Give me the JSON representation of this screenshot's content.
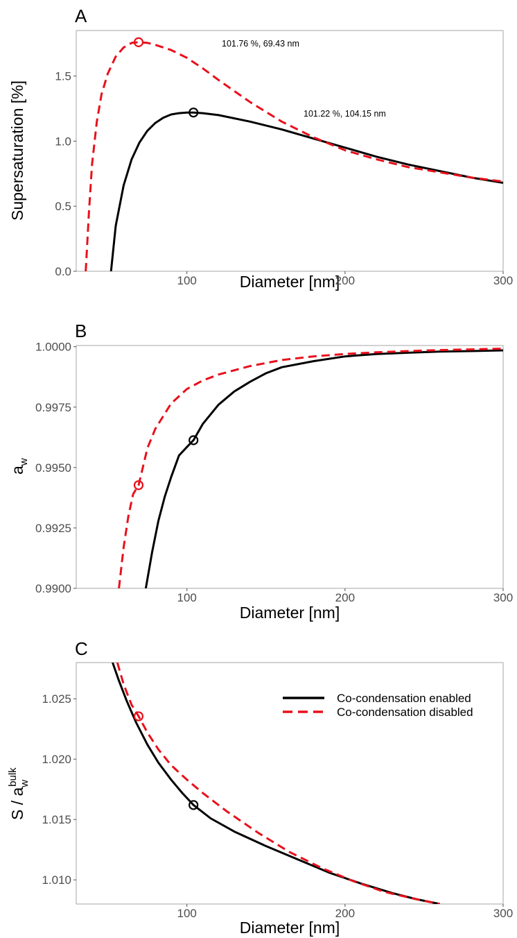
{
  "colors": {
    "enabled": "#000000",
    "disabled": "#e8101b"
  },
  "legend": {
    "items": [
      {
        "label": "Co-condensation enabled",
        "color": "#000000",
        "dash": false
      },
      {
        "label": "Co-condensation disabled",
        "color": "#e8101b",
        "dash": true
      }
    ]
  },
  "chart_data": [
    {
      "panel": "A",
      "type": "line",
      "xlabel": "Diameter [nm]",
      "ylabel": "Supersaturation [%]",
      "xlim": [
        30,
        300
      ],
      "ylim": [
        0,
        1.85
      ],
      "xticks": [
        100,
        200,
        300
      ],
      "yticks": [
        0.0,
        0.5,
        1.0,
        1.5
      ],
      "ytick_labels": [
        "0.0",
        "0.5",
        "1.0",
        "1.5"
      ],
      "series": [
        {
          "key": "enabled",
          "color": "#000000",
          "dash": false,
          "x": [
            52,
            55,
            60,
            65,
            70,
            75,
            80,
            85,
            90,
            95,
            100,
            104.15,
            110,
            120,
            140,
            160,
            180,
            200,
            220,
            240,
            260,
            280,
            300
          ],
          "y": [
            0.0,
            0.35,
            0.66,
            0.86,
            0.99,
            1.08,
            1.14,
            1.18,
            1.205,
            1.215,
            1.22,
            1.22,
            1.215,
            1.2,
            1.15,
            1.09,
            1.02,
            0.95,
            0.88,
            0.82,
            0.77,
            0.72,
            0.68
          ]
        },
        {
          "key": "disabled",
          "color": "#e8101b",
          "dash": true,
          "x": [
            36,
            38,
            40,
            43,
            46,
            50,
            55,
            60,
            65,
            69.43,
            75,
            80,
            90,
            100,
            110,
            120,
            140,
            160,
            180,
            200,
            220,
            240,
            260,
            280,
            300
          ],
          "y": [
            0.0,
            0.45,
            0.82,
            1.15,
            1.36,
            1.52,
            1.65,
            1.72,
            1.755,
            1.76,
            1.755,
            1.74,
            1.7,
            1.64,
            1.56,
            1.47,
            1.3,
            1.15,
            1.03,
            0.93,
            0.86,
            0.8,
            0.76,
            0.72,
            0.69
          ]
        }
      ],
      "markers": [
        {
          "key": "disabled",
          "x": 69.43,
          "y": 1.76,
          "label": "101.76 %, 69.43 nm"
        },
        {
          "key": "enabled",
          "x": 104.15,
          "y": 1.22,
          "label": "101.22 %, 104.15 nm"
        }
      ]
    },
    {
      "panel": "B",
      "type": "line",
      "xlabel": "Diameter [nm]",
      "ylabel": "a",
      "ylabel_sub": "w",
      "xlim": [
        30,
        300
      ],
      "ylim": [
        0.99,
        1.00005
      ],
      "xticks": [
        100,
        200,
        300
      ],
      "yticks": [
        0.99,
        0.9925,
        0.995,
        0.9975,
        1.0
      ],
      "ytick_labels": [
        "0.9900",
        "0.9925",
        "0.9950",
        "0.9975",
        "1.0000"
      ],
      "series": [
        {
          "key": "enabled",
          "color": "#000000",
          "dash": false,
          "x": [
            74,
            78,
            82,
            86,
            90,
            95,
            100,
            104.15,
            110,
            120,
            130,
            140,
            150,
            160,
            180,
            200,
            220,
            240,
            260,
            280,
            300
          ],
          "y": [
            0.99,
            0.9915,
            0.9928,
            0.9938,
            0.9946,
            0.9955,
            0.99585,
            0.99613,
            0.9968,
            0.9976,
            0.99815,
            0.99855,
            0.9989,
            0.99915,
            0.9994,
            0.9996,
            0.9997,
            0.99975,
            0.9998,
            0.99982,
            0.99985
          ]
        },
        {
          "key": "disabled",
          "color": "#e8101b",
          "dash": true,
          "x": [
            57,
            60,
            63,
            66,
            69.43,
            75,
            80,
            90,
            100,
            110,
            120,
            140,
            160,
            180,
            200,
            220,
            240,
            260,
            280,
            300
          ],
          "y": [
            0.99,
            0.9917,
            0.993,
            0.9939,
            0.99427,
            0.9958,
            0.9966,
            0.99765,
            0.99825,
            0.9986,
            0.99885,
            0.9992,
            0.99945,
            0.9996,
            0.9997,
            0.99977,
            0.99982,
            0.99986,
            0.99989,
            0.99992
          ]
        }
      ],
      "markers": [
        {
          "key": "disabled",
          "x": 69.43,
          "y": 0.99427
        },
        {
          "key": "enabled",
          "x": 104.15,
          "y": 0.99613
        }
      ]
    },
    {
      "panel": "C",
      "type": "line",
      "xlabel": "Diameter [nm]",
      "ylabel": "S / a",
      "ylabel_sub": "w",
      "ylabel_sup": "bulk",
      "xlim": [
        30,
        300
      ],
      "ylim": [
        1.008,
        1.028
      ],
      "xticks": [
        100,
        200,
        300
      ],
      "yticks": [
        1.01,
        1.015,
        1.02,
        1.025
      ],
      "ytick_labels": [
        "1.010",
        "1.015",
        "1.020",
        "1.025"
      ],
      "series": [
        {
          "key": "enabled",
          "color": "#000000",
          "dash": false,
          "x": [
            53,
            57,
            62,
            68,
            75,
            82,
            90,
            97,
            104.15,
            115,
            130,
            150,
            170,
            190,
            210,
            230,
            245,
            260
          ],
          "y": [
            1.028,
            1.0265,
            1.0248,
            1.023,
            1.0212,
            1.0197,
            1.0183,
            1.0172,
            1.0162,
            1.0151,
            1.014,
            1.0128,
            1.0117,
            1.0106,
            1.0097,
            1.0089,
            1.0084,
            1.008
          ]
        },
        {
          "key": "disabled",
          "color": "#e8101b",
          "dash": true,
          "x": [
            56,
            60,
            65,
            69.43,
            75,
            82,
            90,
            100,
            110,
            125,
            145,
            165,
            185,
            205,
            225,
            245,
            260
          ],
          "y": [
            1.028,
            1.0262,
            1.0245,
            1.02355,
            1.0222,
            1.0208,
            1.0195,
            1.0183,
            1.0172,
            1.0157,
            1.0139,
            1.0123,
            1.011,
            1.0099,
            1.009,
            1.0084,
            1.008
          ]
        }
      ],
      "markers": [
        {
          "key": "disabled",
          "x": 69.43,
          "y": 1.02355
        },
        {
          "key": "enabled",
          "x": 104.15,
          "y": 1.0162
        }
      ],
      "legend_position": "top-right"
    }
  ]
}
